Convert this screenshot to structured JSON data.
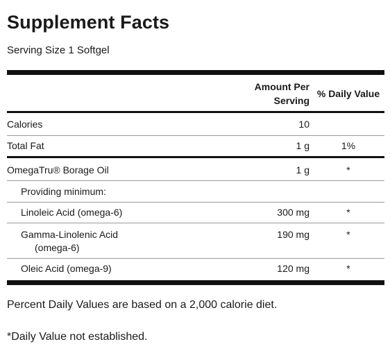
{
  "title": "Supplement Facts",
  "serving_size": "Serving Size 1 Softgel",
  "header": {
    "amount_line1": "Amount Per",
    "amount_line2": "Serving",
    "daily_value": "% Daily Value"
  },
  "rows": [
    {
      "name": "Calories",
      "amount": "10",
      "dv": ""
    },
    {
      "name": "Total Fat",
      "amount": "1 g",
      "dv": "1%"
    },
    {
      "name": "OmegaTru® Borage Oil",
      "amount": "1 g",
      "dv": "*"
    },
    {
      "name": "Providing minimum:",
      "amount": "",
      "dv": ""
    },
    {
      "name": "Linoleic Acid (omega-6)",
      "amount": "300 mg",
      "dv": "*"
    },
    {
      "name": "Gamma-Linolenic Acid",
      "name_cont": "(omega-6)",
      "amount": "190 mg",
      "dv": "*"
    },
    {
      "name": "Oleic Acid (omega-9)",
      "amount": "120 mg",
      "dv": "*"
    }
  ],
  "footnotes": {
    "percent_dv": "Percent Daily Values are based on a 2,000 calorie diet.",
    "not_established": "*Daily Value not established."
  }
}
